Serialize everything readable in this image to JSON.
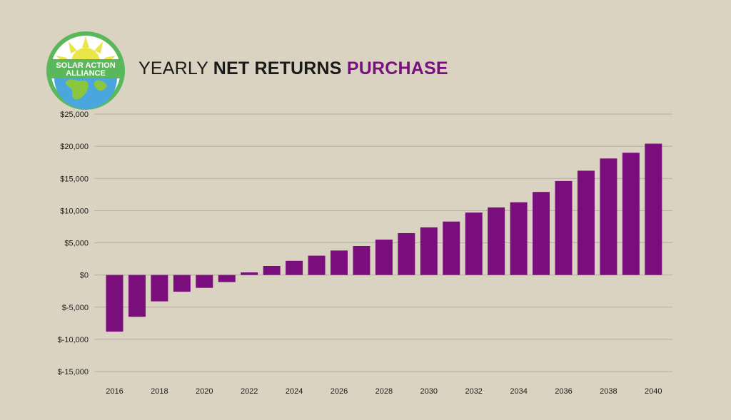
{
  "brand": {
    "line1": "SOLAR ACTION",
    "line2": "ALLIANCE",
    "ring_color": "#5bb85a",
    "sun_color": "#e9e64a",
    "globe_color": "#4aa6dc",
    "land_color": "#8cc63f"
  },
  "title": {
    "part1": "YEARLY ",
    "part2": "NET RETURNS",
    "part3": " PURCHASE",
    "accent_color": "#7a1080"
  },
  "chart_data": {
    "type": "bar",
    "bar_color": "#7a0e7c",
    "grid_color": "#b5ad9e",
    "ylim": [
      -15000,
      25000
    ],
    "yticks": [
      -15000,
      -10000,
      -5000,
      0,
      5000,
      10000,
      15000,
      20000,
      25000
    ],
    "ytick_labels": [
      "$-15,000",
      "$-10,000",
      "$-5,000",
      "$0",
      "$5,000",
      "$10,000",
      "$15,000",
      "$20,000",
      "$25,000"
    ],
    "categories": [
      2016,
      2017,
      2018,
      2019,
      2020,
      2021,
      2022,
      2023,
      2024,
      2025,
      2026,
      2027,
      2028,
      2029,
      2030,
      2031,
      2032,
      2033,
      2034,
      2035,
      2036,
      2037,
      2038,
      2039,
      2040
    ],
    "x_tick_labels": [
      "2016",
      "2018",
      "2020",
      "2022",
      "2024",
      "2026",
      "2028",
      "2030",
      "2032",
      "2034",
      "2036",
      "2038",
      "2040"
    ],
    "values": [
      -8800,
      -6500,
      -4100,
      -2600,
      -2000,
      -1100,
      400,
      1400,
      2200,
      3000,
      3800,
      4500,
      5500,
      6500,
      7400,
      8300,
      9700,
      10500,
      11300,
      12900,
      14600,
      16200,
      18100,
      19000,
      20400
    ],
    "grid": true,
    "legend": "none"
  }
}
